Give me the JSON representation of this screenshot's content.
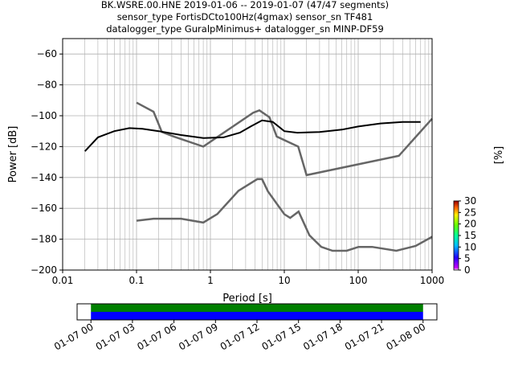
{
  "title_lines": [
    "BK.WSRE.00.HNE   2019-01-06 -- 2019-01-07  (47/47 segments)",
    "sensor_type FortisDCto100Hz(4gmax) sensor_sn TF481",
    "datalogger_type GuralpMinimus+ datalogger_sn MINP-DF59"
  ],
  "chart_data": [
    {
      "type": "heatmap",
      "xlabel": "Period [s]",
      "ylabel": "Power [dB]",
      "xscale": "log",
      "xlim": [
        0.01,
        1000
      ],
      "ylim": [
        -200,
        -50
      ],
      "x_ticks": [
        {
          "value": 0.01,
          "label": "0.01"
        },
        {
          "value": 0.1,
          "label": "0.1"
        },
        {
          "value": 1,
          "label": "1"
        },
        {
          "value": 10,
          "label": "10"
        },
        {
          "value": 100,
          "label": "100"
        },
        {
          "value": 1000,
          "label": "1000"
        }
      ],
      "y_ticks": [
        {
          "value": -60,
          "label": "−60"
        },
        {
          "value": -80,
          "label": "−80"
        },
        {
          "value": -100,
          "label": "−100"
        },
        {
          "value": -120,
          "label": "−120"
        },
        {
          "value": -140,
          "label": "−140"
        },
        {
          "value": -160,
          "label": "−160"
        },
        {
          "value": -180,
          "label": "−180"
        },
        {
          "value": -200,
          "label": "−200"
        }
      ],
      "grid": true,
      "colorbar": {
        "label": "[%]",
        "range": [
          0,
          30
        ],
        "ticks": [
          "0",
          "5",
          "10",
          "15",
          "20",
          "25",
          "30"
        ]
      },
      "noise_models": [
        {
          "x": [
            0.1,
            0.17,
            0.22,
            0.32,
            0.8,
            3.8,
            4.6,
            6.3,
            7.9,
            15.4,
            20,
            354.8,
            10000
          ],
          "y": [
            -91.5,
            -97.4,
            -110.5,
            -113.5,
            -120,
            -98,
            -96.5,
            -101,
            -113.5,
            -120,
            -138.5,
            -126,
            -48.5
          ]
        },
        {
          "x": [
            0.1,
            0.17,
            0.4,
            0.8,
            1.24,
            2.4,
            4.3,
            5,
            6,
            10,
            12,
            15.6,
            21.9,
            31.6,
            45,
            70,
            101,
            154,
            328,
            600,
            10000
          ],
          "y": [
            -168,
            -166.7,
            -166.7,
            -169.2,
            -163.7,
            -148.6,
            -141.1,
            -141.1,
            -149,
            -163.8,
            -166.2,
            -162.1,
            -177.5,
            -185,
            -187.5,
            -187.5,
            -185,
            -185,
            -187.5,
            -184.4,
            -151.5
          ]
        }
      ],
      "mean_curve": {
        "x": [
          0.02,
          0.03,
          0.05,
          0.08,
          0.12,
          0.2,
          0.4,
          0.8,
          1.5,
          2.5,
          3.5,
          5,
          7,
          10,
          15,
          30,
          60,
          100,
          200,
          400,
          700
        ],
        "y": [
          -123,
          -114,
          -110,
          -108,
          -108.5,
          -110,
          -112.5,
          -114.5,
          -114,
          -111,
          -107,
          -103,
          -104,
          -110,
          -111,
          -110.5,
          -109,
          -107,
          -105,
          -104,
          -104
        ]
      },
      "psd_band": {
        "x": [
          0.02,
          0.03,
          0.05,
          0.08,
          0.12,
          0.2,
          0.4,
          0.8,
          1.5,
          2.5,
          3.5,
          5,
          7,
          10,
          15,
          30,
          60,
          100,
          200,
          400,
          700
        ],
        "lower": [
          -126,
          -117,
          -115,
          -114,
          -114,
          -114,
          -114,
          -115,
          -115,
          -112,
          -108,
          -104,
          -106,
          -112,
          -112,
          -112,
          -111,
          -109,
          -107,
          -106,
          -106
        ],
        "upper": [
          -119,
          -110,
          -99,
          -92,
          -93,
          -102,
          -110,
          -113,
          -112,
          -108,
          -104,
          -101,
          -102,
          -108,
          -110,
          -109,
          -107,
          -104,
          -101,
          -99,
          -99
        ]
      }
    },
    {
      "type": "timeline",
      "tick_labels": [
        "01-07 00",
        "01-07 03",
        "01-07 06",
        "01-07 09",
        "01-07 12",
        "01-07 15",
        "01-07 18",
        "01-07 21",
        "01-08 00"
      ],
      "xlim_hours": [
        -1,
        25
      ],
      "coverage_hours": [
        0,
        24
      ],
      "colors": {
        "top": "#008000",
        "bottom": "#0000ff"
      }
    }
  ]
}
